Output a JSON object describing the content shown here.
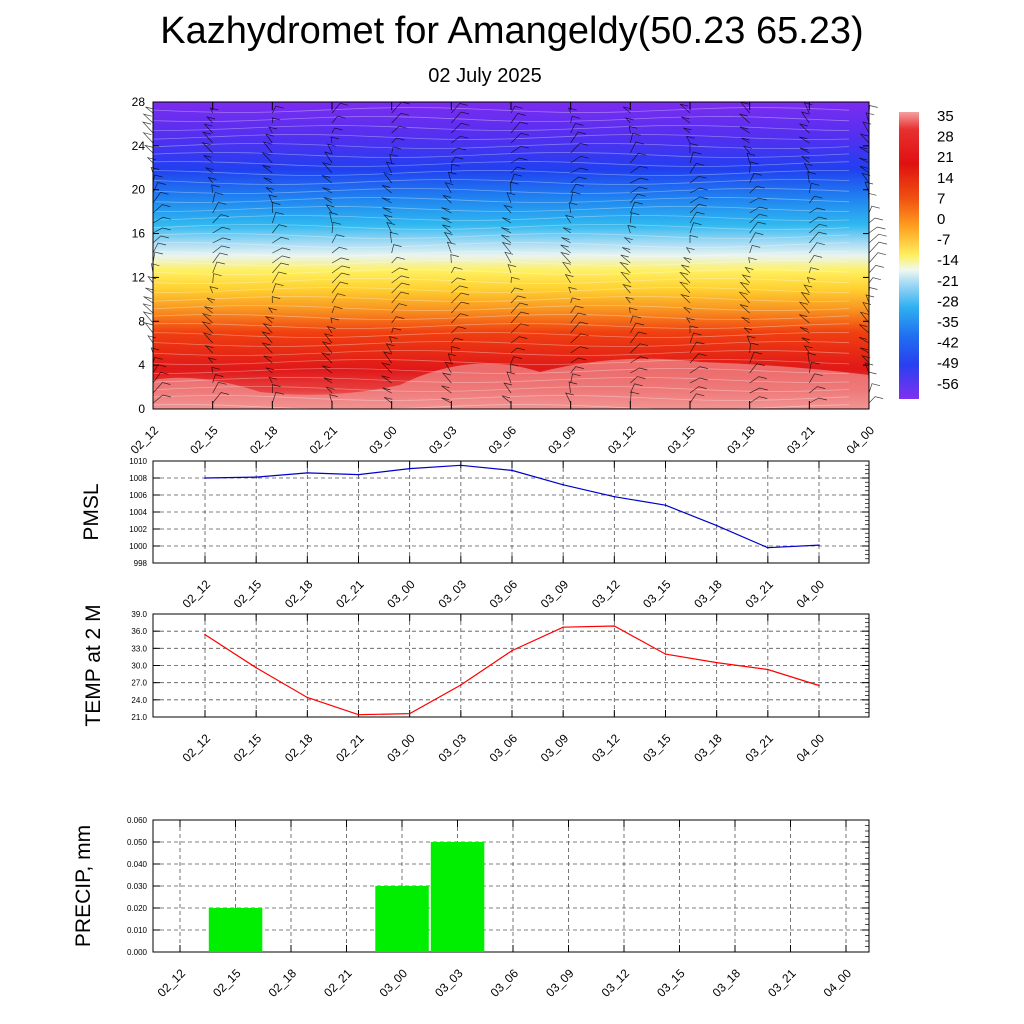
{
  "header": {
    "title": "Kazhydromet for Amangeldy(50.23 65.23)",
    "subtitle": "02 July 2025"
  },
  "chart_data": [
    {
      "type": "heatmap",
      "ylabel": "",
      "ylim": [
        0,
        28
      ],
      "y_ticks": [
        "0",
        "4",
        "8",
        "12",
        "16",
        "20",
        "24",
        "28"
      ],
      "x_ticks": [
        "02_12",
        "02_15",
        "02_18",
        "02_21",
        "03_00",
        "03_03",
        "03_06",
        "03_09",
        "03_12",
        "03_15",
        "03_18",
        "03_21",
        "04_00"
      ],
      "colorbar_labels": [
        "35",
        "28",
        "21",
        "14",
        "7",
        "0",
        "-7",
        "-14",
        "-21",
        "-28",
        "-35",
        "-42",
        "-49",
        "-56"
      ],
      "colors": {
        "warm": "#e01818",
        "hot": "#f3a0a0",
        "yellow": "#fff060",
        "cyan": "#30b8f0",
        "blue": "#2040f0",
        "purple": "#7c2cf0"
      },
      "overlay": "wind barbs"
    },
    {
      "type": "line",
      "ylabel": "PMSL",
      "ylim": [
        998,
        1010
      ],
      "y_ticks": [
        "998",
        "1000",
        "1002",
        "1004",
        "1006",
        "1008",
        "1010"
      ],
      "categories": [
        "02_12",
        "02_15",
        "02_18",
        "02_21",
        "03_00",
        "03_03",
        "03_06",
        "03_09",
        "03_12",
        "03_15",
        "03_18",
        "03_21",
        "04_00"
      ],
      "values": [
        1008.0,
        1008.1,
        1008.6,
        1008.4,
        1009.1,
        1009.5,
        1008.9,
        1007.2,
        1005.8,
        1004.8,
        1002.4,
        999.8,
        1000.1
      ],
      "color": "#0000cc",
      "grid": true
    },
    {
      "type": "line",
      "ylabel": "TEMP at 2 M",
      "ylim": [
        21.0,
        39.0
      ],
      "y_ticks": [
        "21.0",
        "24.0",
        "27.0",
        "30.0",
        "33.0",
        "36.0",
        "39.0"
      ],
      "categories": [
        "02_12",
        "02_15",
        "02_18",
        "02_21",
        "03_00",
        "03_03",
        "03_06",
        "03_09",
        "03_12",
        "03_15",
        "03_18",
        "03_21",
        "04_00"
      ],
      "values": [
        35.4,
        29.6,
        24.4,
        21.4,
        21.6,
        26.6,
        32.6,
        36.7,
        36.9,
        32.0,
        30.5,
        29.3,
        26.5
      ],
      "color": "#ff0000",
      "grid": true
    },
    {
      "type": "bar",
      "ylabel": "PRECIP, mm",
      "ylim": [
        0,
        0.06
      ],
      "y_ticks": [
        "0.000",
        "0.010",
        "0.020",
        "0.030",
        "0.040",
        "0.050",
        "0.060"
      ],
      "categories": [
        "02_12",
        "02_15",
        "02_18",
        "02_21",
        "03_00",
        "03_03",
        "03_06",
        "03_09",
        "03_12",
        "03_15",
        "03_18",
        "03_21",
        "04_00"
      ],
      "values": [
        0,
        0.02,
        0,
        0,
        0.03,
        0.05,
        0,
        0,
        0,
        0,
        0,
        0,
        0
      ],
      "color": "#00ee00",
      "grid": true
    }
  ]
}
